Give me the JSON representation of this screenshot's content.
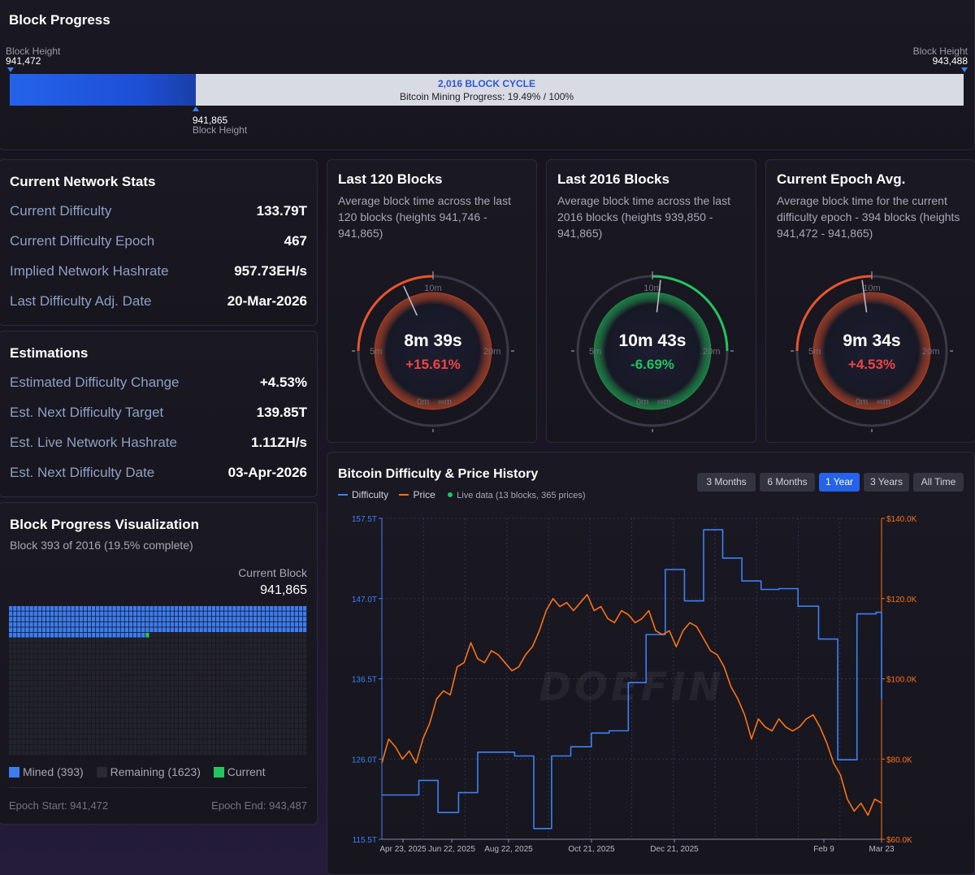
{
  "block_progress": {
    "title": "Block Progress",
    "left_label": "Block Height",
    "left_value": "941,472",
    "right_label": "Block Height",
    "right_value": "943,488",
    "cycle_label": "2,016 BLOCK CYCLE",
    "progress_text": "Bitcoin Mining Progress: 19.49% / 100%",
    "progress_fraction": 0.1949,
    "current_value": "941,865",
    "current_label": "Block Height"
  },
  "network_stats": {
    "title": "Current Network Stats",
    "rows": [
      {
        "label": "Current Difficulty",
        "value": "133.79T"
      },
      {
        "label": "Current Difficulty Epoch",
        "value": "467"
      },
      {
        "label": "Implied Network Hashrate",
        "value": "957.73EH/s"
      },
      {
        "label": "Last Difficulty Adj. Date",
        "value": "20-Mar-2026"
      }
    ]
  },
  "estimations": {
    "title": "Estimations",
    "rows": [
      {
        "label": "Estimated Difficulty Change",
        "value": "+4.53%"
      },
      {
        "label": "Est. Next Difficulty Target",
        "value": "139.85T"
      },
      {
        "label": "Est. Live Network Hashrate",
        "value": "1.11ZH/s"
      },
      {
        "label": "Est. Next Difficulty Date",
        "value": "03-Apr-2026"
      }
    ]
  },
  "visualization": {
    "title": "Block Progress Visualization",
    "subtitle": "Block 393 of 2016 (19.5% complete)",
    "current_block_label": "Current Block",
    "current_block_value": "941,865",
    "mined": 393,
    "total": 2016,
    "legend_mined": "Mined (393)",
    "legend_remaining": "Remaining (1623)",
    "legend_current": "Current",
    "epoch_start": "Epoch Start: 941,472",
    "epoch_end": "Epoch End: 943,487",
    "colors": {
      "mined": "#3b7df0",
      "remaining": "#23232c",
      "current": "#22c55e"
    }
  },
  "gauges": [
    {
      "title": "Last 120 Blocks",
      "description": "Average block time across the last 120 blocks (heights 941,746 - 941,865)",
      "time": "8m 39s",
      "delta": "+15.61%",
      "delta_color": "#f04444",
      "minutes": 8.65,
      "arc_color": "#e8542c",
      "labels": {
        "top": "10m",
        "left": "5m",
        "right": "20m",
        "bottom_left": "0m",
        "bottom_right": "∞m"
      }
    },
    {
      "title": "Last 2016 Blocks",
      "description": "Average block time across the last 2016 blocks (heights 939,850 - 941,865)",
      "time": "10m 43s",
      "delta": "-6.69%",
      "delta_color": "#22c55e",
      "minutes": 10.72,
      "arc_color": "#22c55e",
      "labels": {
        "top": "10m",
        "left": "5m",
        "right": "20m",
        "bottom_left": "0m",
        "bottom_right": "∞m"
      }
    },
    {
      "title": "Current Epoch Avg.",
      "description": "Average block time for the current difficulty epoch - 394 blocks (heights 941,472 - 941,865)",
      "time": "9m 34s",
      "delta": "+4.53%",
      "delta_color": "#f04444",
      "minutes": 9.57,
      "arc_color": "#e8542c",
      "labels": {
        "top": "10m",
        "left": "5m",
        "right": "20m",
        "bottom_left": "0m",
        "bottom_right": "∞m"
      }
    }
  ],
  "history": {
    "title": "Bitcoin Difficulty & Price History",
    "legend_difficulty": "Difficulty",
    "legend_price": "Price",
    "live_text": "Live data (13 blocks, 365 prices)",
    "ranges": [
      {
        "label": "3 Months",
        "active": false
      },
      {
        "label": "6 Months",
        "active": false
      },
      {
        "label": "1 Year",
        "active": true
      },
      {
        "label": "3 Years",
        "active": false
      },
      {
        "label": "All Time",
        "active": false
      }
    ],
    "watermark": "DOEFIN",
    "colors": {
      "difficulty": "#3b82f6",
      "price": "#f97316",
      "live": "#22c55e"
    }
  },
  "chart_data": {
    "type": "line",
    "title": "Bitcoin Difficulty & Price History",
    "x_ticks": [
      "Apr 23, 2025",
      "Jun 22, 2025",
      "Aug 22, 2025",
      "Oct 21, 2025",
      "Dec 21, 2025",
      "Feb 9",
      "Mar 23"
    ],
    "y_left_ticks": [
      "157.5T",
      "147.0T",
      "136.5T",
      "126.0T",
      "115.5T"
    ],
    "y_right_ticks": [
      "$140.0K",
      "$120.0K",
      "$100.0K",
      "$80.0K",
      "$60.0K"
    ],
    "ylim_left": [
      115.5,
      157.5
    ],
    "ylim_right": [
      60,
      140
    ],
    "xlim_days": [
      0,
      365
    ],
    "series": [
      {
        "name": "Difficulty",
        "axis": "left",
        "step": true,
        "points": [
          [
            0,
            121.3
          ],
          [
            27,
            121.3
          ],
          [
            27,
            123.2
          ],
          [
            41,
            123.2
          ],
          [
            41,
            119.0
          ],
          [
            56,
            119.0
          ],
          [
            56,
            121.6
          ],
          [
            70,
            121.6
          ],
          [
            70,
            126.9
          ],
          [
            97,
            126.9
          ],
          [
            97,
            126.4
          ],
          [
            111,
            126.4
          ],
          [
            111,
            116.9
          ],
          [
            124,
            116.9
          ],
          [
            124,
            126.4
          ],
          [
            138,
            126.4
          ],
          [
            138,
            127.6
          ],
          [
            153,
            127.6
          ],
          [
            153,
            129.4
          ],
          [
            166,
            129.4
          ],
          [
            166,
            129.7
          ],
          [
            180,
            129.7
          ],
          [
            180,
            136.0
          ],
          [
            193,
            136.0
          ],
          [
            193,
            142.3
          ],
          [
            207,
            142.3
          ],
          [
            207,
            150.8
          ],
          [
            221,
            150.8
          ],
          [
            221,
            146.7
          ],
          [
            235,
            146.7
          ],
          [
            235,
            156.0
          ],
          [
            249,
            156.0
          ],
          [
            249,
            152.3
          ],
          [
            263,
            152.3
          ],
          [
            263,
            149.3
          ],
          [
            277,
            149.3
          ],
          [
            277,
            148.2
          ],
          [
            290,
            148.2
          ],
          [
            290,
            148.3
          ],
          [
            304,
            148.3
          ],
          [
            304,
            146.0
          ],
          [
            319,
            146.0
          ],
          [
            319,
            141.7
          ],
          [
            333,
            141.7
          ],
          [
            333,
            125.9
          ],
          [
            347,
            125.9
          ],
          [
            347,
            145.0
          ],
          [
            361,
            145.0
          ],
          [
            361,
            145.2
          ],
          [
            365,
            145.2
          ],
          [
            365,
            133.8
          ]
        ]
      },
      {
        "name": "Price",
        "axis": "right",
        "points": [
          [
            0,
            79
          ],
          [
            5,
            85
          ],
          [
            10,
            83
          ],
          [
            15,
            80
          ],
          [
            20,
            82
          ],
          [
            25,
            79
          ],
          [
            30,
            85
          ],
          [
            35,
            89
          ],
          [
            40,
            95
          ],
          [
            45,
            97
          ],
          [
            50,
            96
          ],
          [
            55,
            103
          ],
          [
            60,
            104
          ],
          [
            65,
            109
          ],
          [
            70,
            105
          ],
          [
            75,
            104
          ],
          [
            80,
            107
          ],
          [
            85,
            106
          ],
          [
            90,
            104
          ],
          [
            95,
            102
          ],
          [
            100,
            103
          ],
          [
            105,
            106
          ],
          [
            110,
            108
          ],
          [
            115,
            112
          ],
          [
            120,
            117
          ],
          [
            125,
            120
          ],
          [
            130,
            118
          ],
          [
            135,
            119
          ],
          [
            140,
            117
          ],
          [
            145,
            119
          ],
          [
            150,
            121
          ],
          [
            155,
            117
          ],
          [
            160,
            118
          ],
          [
            165,
            115
          ],
          [
            170,
            114
          ],
          [
            175,
            117
          ],
          [
            180,
            116
          ],
          [
            185,
            114
          ],
          [
            190,
            115
          ],
          [
            195,
            117
          ],
          [
            200,
            112
          ],
          [
            205,
            111
          ],
          [
            210,
            112
          ],
          [
            215,
            108
          ],
          [
            220,
            112
          ],
          [
            225,
            114
          ],
          [
            230,
            113
          ],
          [
            235,
            110
          ],
          [
            240,
            107
          ],
          [
            245,
            106
          ],
          [
            250,
            103
          ],
          [
            255,
            98
          ],
          [
            260,
            95
          ],
          [
            265,
            91
          ],
          [
            270,
            85
          ],
          [
            275,
            90
          ],
          [
            280,
            88
          ],
          [
            285,
            87
          ],
          [
            290,
            90
          ],
          [
            295,
            88
          ],
          [
            300,
            87
          ],
          [
            305,
            88
          ],
          [
            310,
            90
          ],
          [
            315,
            91
          ],
          [
            320,
            88
          ],
          [
            325,
            84
          ],
          [
            330,
            79
          ],
          [
            335,
            76
          ],
          [
            340,
            70
          ],
          [
            345,
            67
          ],
          [
            350,
            69
          ],
          [
            355,
            66
          ],
          [
            360,
            70
          ],
          [
            365,
            69
          ]
        ]
      }
    ]
  }
}
